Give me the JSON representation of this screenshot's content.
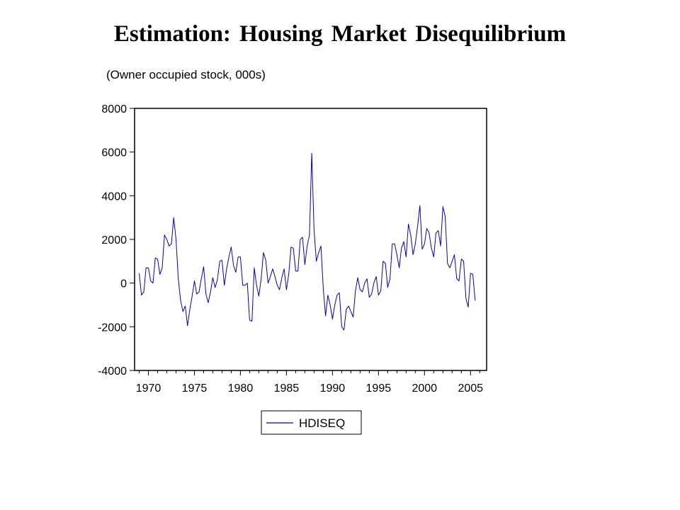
{
  "slide": {
    "title": "Estimation:  Housing Market Disequilibrium",
    "subtitle": "(Owner occupied stock, 000s)"
  },
  "chart_data": {
    "type": "line",
    "title": "",
    "xlabel": "",
    "ylabel": "",
    "xlim": [
      1968.5,
      2006.75
    ],
    "ylim": [
      -4000,
      8000
    ],
    "y_ticks": [
      8000,
      6000,
      4000,
      2000,
      0,
      -2000,
      -4000
    ],
    "x_ticks": [
      1970,
      1975,
      1980,
      1985,
      1990,
      1995,
      2000,
      2005
    ],
    "grid": false,
    "legend": {
      "position": "bottom-center",
      "entries": [
        "HDISEQ"
      ]
    },
    "series": [
      {
        "name": "HDISEQ",
        "color": "#0000cc",
        "x_start": 1969.0,
        "x_step": 0.25,
        "values": [
          450,
          -550,
          -400,
          700,
          700,
          100,
          0,
          1150,
          1100,
          400,
          700,
          2200,
          2000,
          1700,
          1800,
          3000,
          2000,
          200,
          -800,
          -1300,
          -1050,
          -1950,
          -1200,
          -600,
          100,
          -500,
          -400,
          200,
          750,
          -500,
          -900,
          -400,
          250,
          -200,
          150,
          1000,
          1050,
          -100,
          650,
          1200,
          1650,
          800,
          500,
          1200,
          1200,
          -100,
          -100,
          0,
          -1700,
          -1750,
          700,
          -100,
          -600,
          200,
          1400,
          1050,
          0,
          300,
          650,
          300,
          -100,
          -300,
          250,
          650,
          -300,
          400,
          1650,
          1600,
          550,
          550,
          2000,
          2100,
          850,
          1700,
          2200,
          5950,
          2400,
          1000,
          1400,
          1700,
          -250,
          -1500,
          -550,
          -1000,
          -1650,
          -1000,
          -550,
          -450,
          -2000,
          -2150,
          -1200,
          -1050,
          -1300,
          -1550,
          -350,
          250,
          -300,
          -400,
          0,
          200,
          -650,
          -500,
          0,
          300,
          -550,
          -350,
          1000,
          900,
          -200,
          200,
          1800,
          1800,
          1300,
          700,
          1600,
          1900,
          1200,
          2700,
          2200,
          1300,
          1800,
          2600,
          3550,
          1550,
          1800,
          2500,
          2300,
          1600,
          1200,
          2300,
          2400,
          1700,
          3500,
          3050,
          900,
          700,
          1000,
          1300,
          200,
          100,
          1100,
          1000,
          -700,
          -1100,
          450,
          400,
          -800
        ]
      }
    ]
  }
}
